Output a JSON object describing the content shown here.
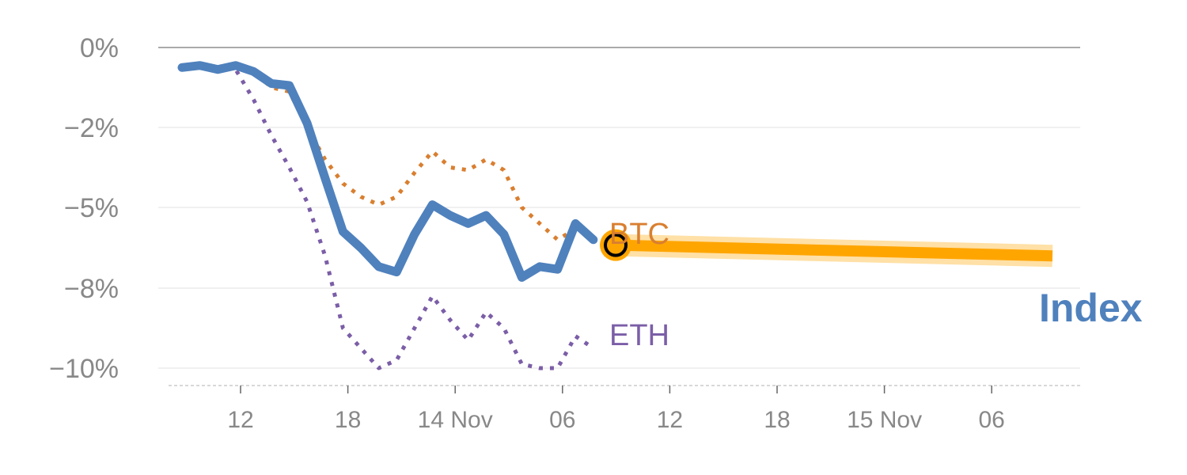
{
  "chart_data": {
    "type": "line",
    "y_axis": {
      "ticks": [
        0,
        -2,
        -5,
        -8,
        -10
      ],
      "tick_labels": [
        "0%",
        "−2%",
        "−5%",
        "−8%",
        "−10%"
      ]
    },
    "x_axis": {
      "tick_labels": [
        "12",
        "18",
        "14 Nov",
        "06",
        "12",
        "18",
        "15 Nov",
        "06"
      ]
    },
    "series": [
      {
        "name": "Index",
        "role": "history",
        "color": "#4f81bd",
        "values": [
          -0.5,
          -0.45,
          -0.55,
          -0.45,
          -0.6,
          -0.9,
          -0.95,
          -1.9,
          -3.9,
          -5.9,
          -6.5,
          -7.2,
          -7.4,
          -6.0,
          -4.9,
          -5.3,
          -5.6,
          -5.3,
          -6.0,
          -7.6,
          -7.2,
          -7.3,
          -5.6,
          -6.2
        ]
      },
      {
        "name": "BTC",
        "role": "comparison",
        "color": "#d97f30",
        "values": [
          -0.45,
          -0.45,
          -0.5,
          -0.45,
          -0.6,
          -1.0,
          -1.1,
          -2.0,
          -3.2,
          -4.1,
          -4.6,
          -4.9,
          -4.6,
          -3.7,
          -2.9,
          -3.5,
          -3.6,
          -3.2,
          -3.6,
          -5.0,
          -5.6,
          -6.2,
          -5.8,
          -5.9
        ]
      },
      {
        "name": "ETH",
        "role": "comparison",
        "color": "#7b5ea7",
        "values": [
          -0.5,
          -0.5,
          -0.5,
          -0.55,
          -1.3,
          -2.3,
          -3.5,
          -4.8,
          -6.8,
          -9.0,
          -9.5,
          -10.0,
          -9.8,
          -9.0,
          -8.2,
          -8.8,
          -9.3,
          -8.6,
          -9.0,
          -9.9,
          -10.0,
          -10.0,
          -9.2,
          -9.5
        ]
      },
      {
        "name": "Index",
        "role": "projection",
        "color": "#ffa500",
        "values": [
          -6.4,
          -6.8
        ]
      }
    ],
    "current_marker": {
      "series": "Index",
      "value": -6.4
    },
    "grid": true,
    "colors": {
      "axis_text": "#888888",
      "grid": "#e8e8e8",
      "zero_line": "#777777"
    }
  }
}
